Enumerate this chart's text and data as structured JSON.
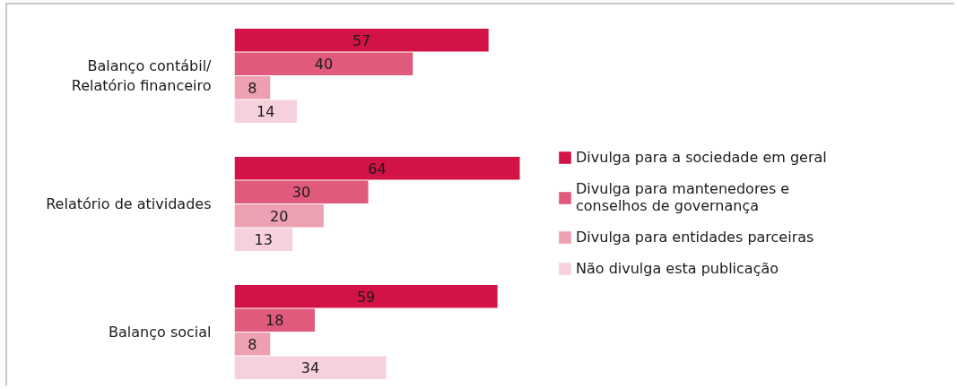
{
  "chart_data": {
    "type": "bar",
    "orientation": "horizontal",
    "categories": [
      "Balanço contábil/ Relatório financeiro",
      "Relatório de atividades",
      "Balanço social"
    ],
    "series": [
      {
        "name": "Divulga para a sociedade em geral",
        "color": "#d31245",
        "values": [
          57,
          64,
          59
        ]
      },
      {
        "name": "Divulga para mantenedores e conselhos de governança",
        "color": "#e05a7c",
        "values": [
          40,
          30,
          18
        ]
      },
      {
        "name": "Divulga para entidades parceiras",
        "color": "#eea0b3",
        "values": [
          8,
          20,
          8
        ]
      },
      {
        "name": "Não divulga esta publicação",
        "color": "#f6d0db",
        "values": [
          14,
          13,
          34
        ]
      }
    ],
    "data_labels": true,
    "legend": "right",
    "tick_labels": "y"
  }
}
